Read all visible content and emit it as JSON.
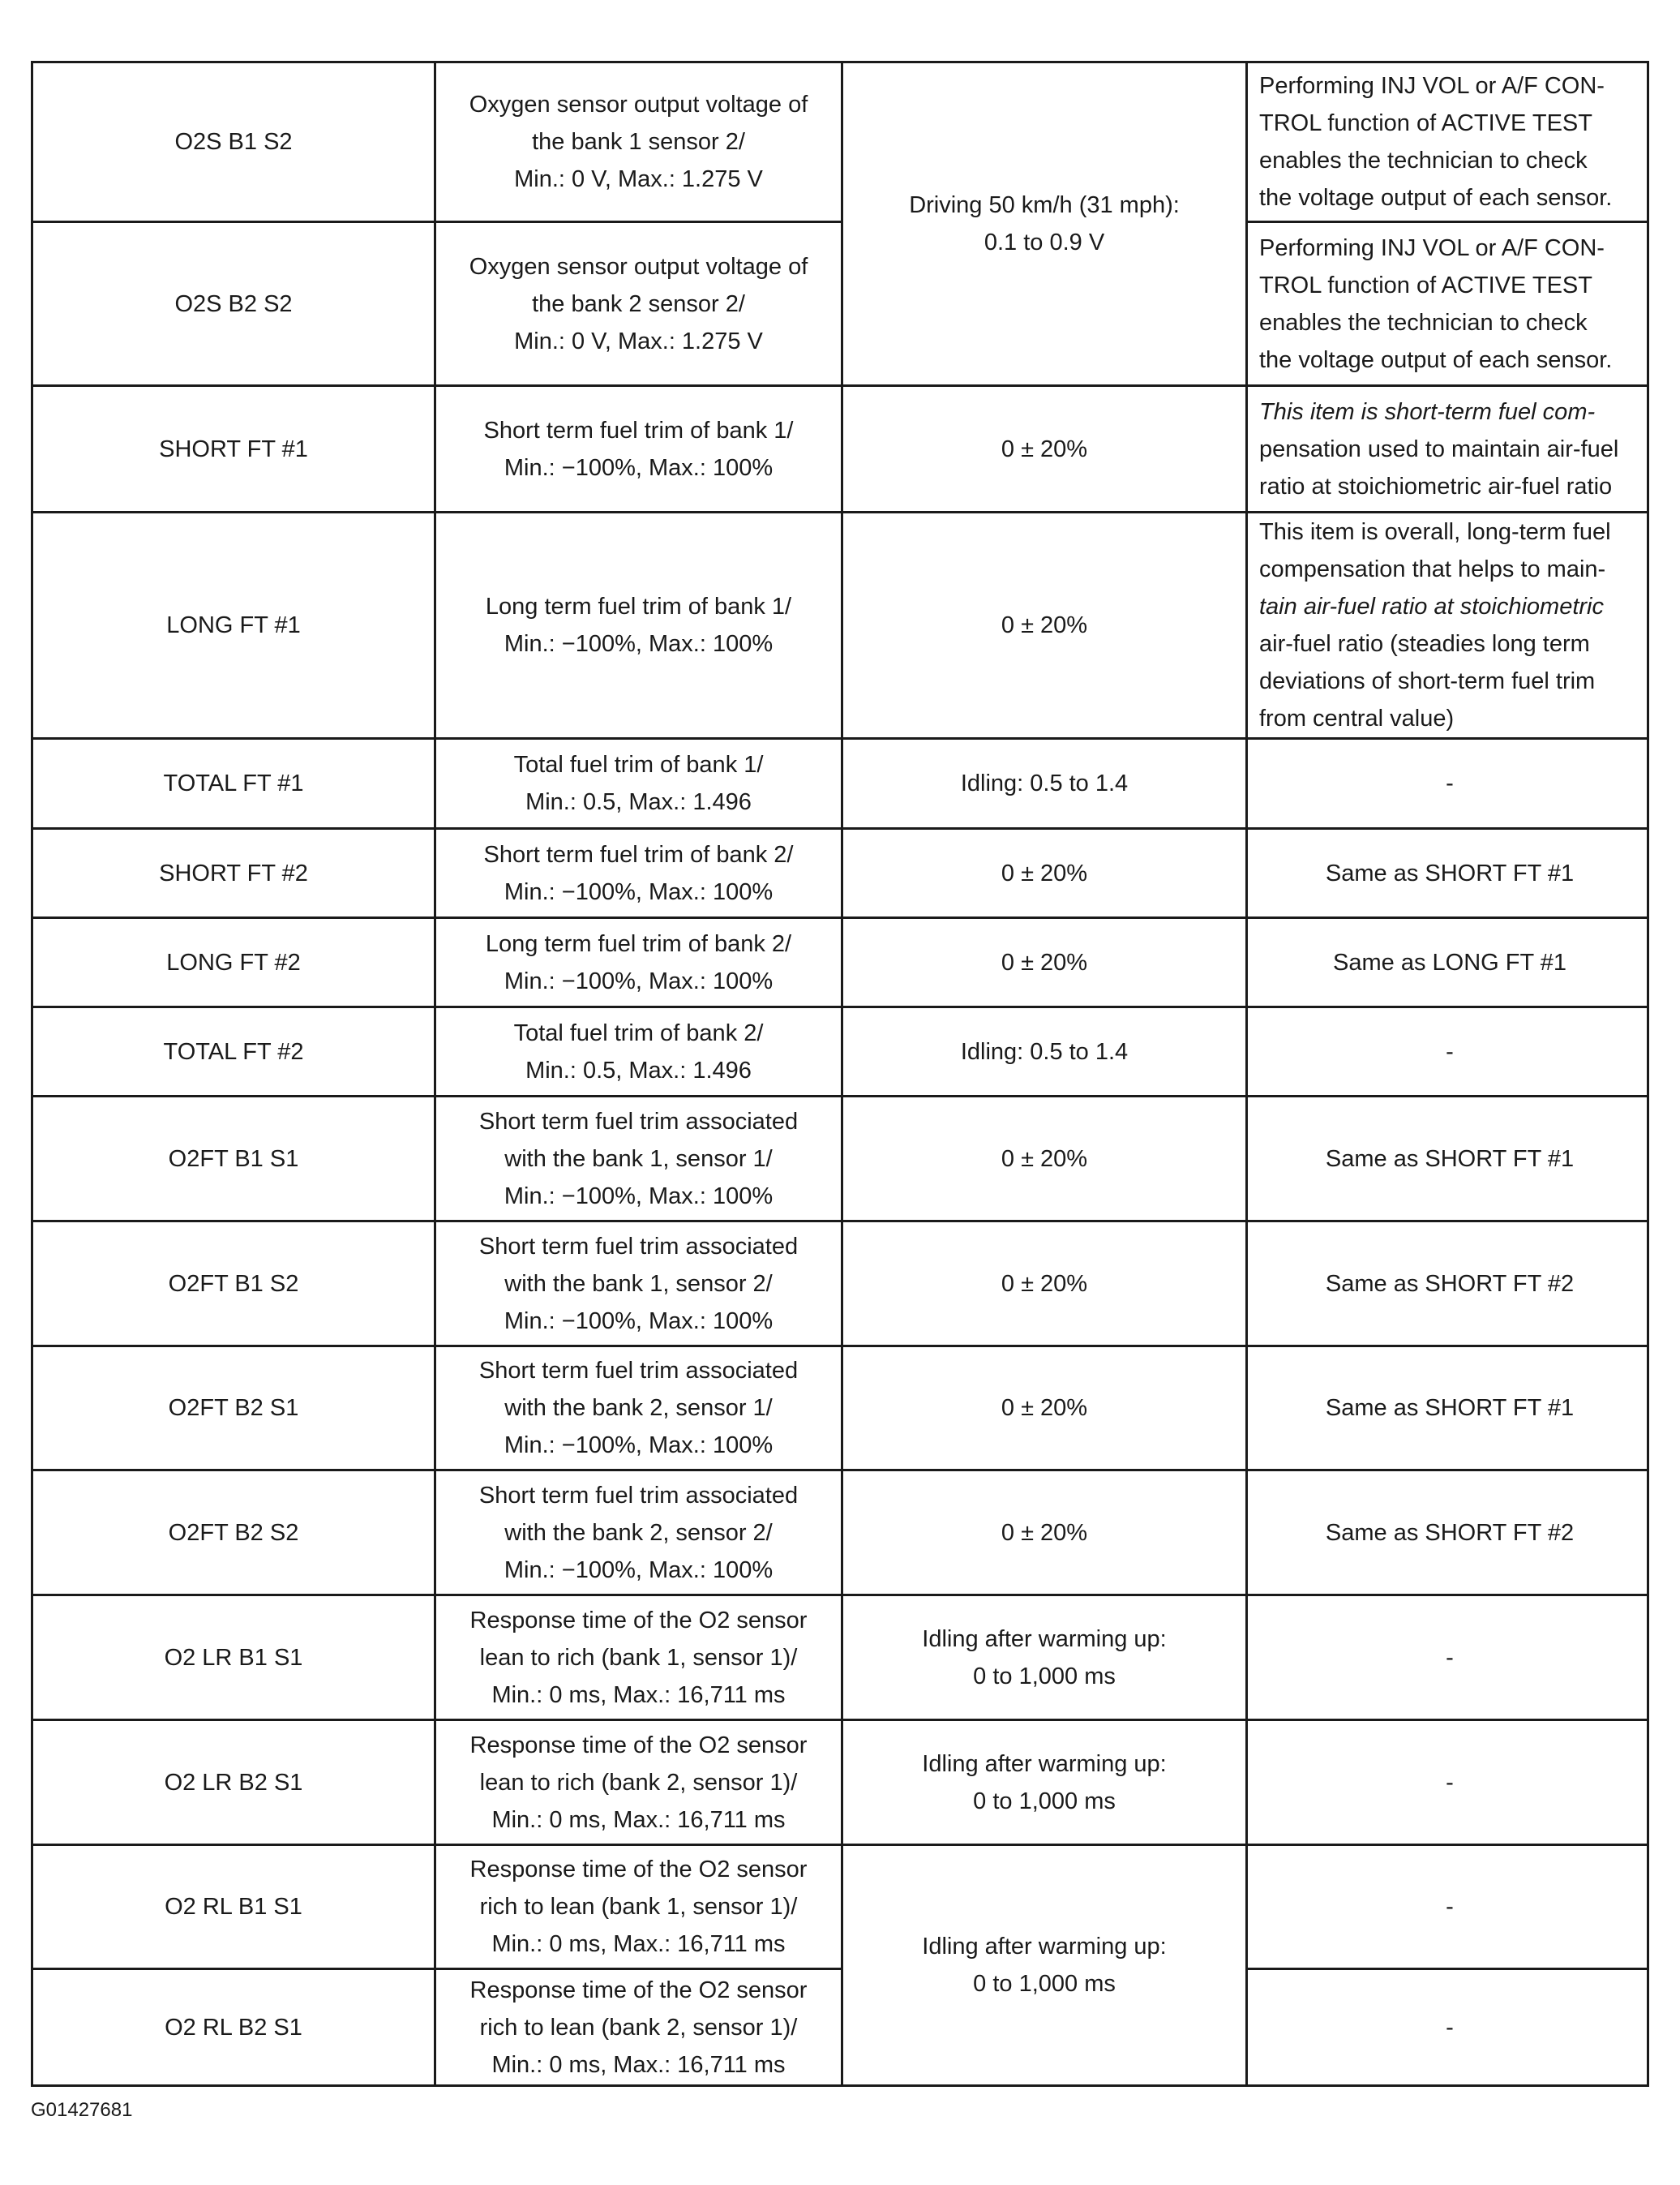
{
  "rows": [
    {
      "item": "O2S B1 S2",
      "desc": [
        "Oxygen sensor output voltage of",
        "the bank 1 sensor 2/",
        "Min.: 0 V, Max.: 1.275 V"
      ],
      "normal": [
        "Driving 50 km/h (31 mph):",
        "0.1 to 0.9 V"
      ],
      "normal_span": 2,
      "note": [
        "Performing INJ VOL or A/F CON-",
        "TROL function of ACTIVE TEST",
        "enables the technician to check",
        "the voltage output of each sensor."
      ]
    },
    {
      "item": "O2S B2 S2",
      "desc": [
        "Oxygen sensor output voltage of",
        "the bank 2 sensor 2/",
        "Min.: 0 V, Max.: 1.275 V"
      ],
      "normal": null,
      "note": [
        "Performing INJ VOL or A/F CON-",
        "TROL function of ACTIVE TEST",
        "enables the technician to check",
        "the voltage output of each sensor."
      ]
    },
    {
      "item": "SHORT FT #1",
      "desc": [
        "Short term fuel trim of bank 1/",
        "Min.: −100%, Max.: 100%"
      ],
      "normal": [
        "0 ± 20%"
      ],
      "note": [
        "This item is short-term fuel com-",
        "pensation used to maintain air-fuel",
        "ratio at stoichiometric air-fuel ratio"
      ],
      "note_italic": [
        0
      ]
    },
    {
      "item": "LONG FT #1",
      "desc": [
        "Long term fuel trim of bank 1/",
        "Min.: −100%, Max.: 100%"
      ],
      "normal": [
        "0 ± 20%"
      ],
      "note": [
        "This item is overall, long-term fuel",
        "compensation that helps to main-",
        "tain air-fuel ratio at stoichiometric",
        "air-fuel ratio (steadies long term",
        "deviations of short-term fuel trim",
        "from central value)"
      ],
      "note_italic": [
        2
      ]
    },
    {
      "item": "TOTAL FT #1",
      "desc": [
        "Total fuel trim of bank 1/",
        "Min.: 0.5, Max.: 1.496"
      ],
      "normal": [
        "Idling: 0.5 to 1.4"
      ],
      "note": [
        "-"
      ]
    },
    {
      "item": "SHORT FT #2",
      "desc": [
        "Short term fuel trim of bank 2/",
        "Min.: −100%, Max.: 100%"
      ],
      "normal": [
        "0 ± 20%"
      ],
      "note": [
        "Same as SHORT FT #1"
      ]
    },
    {
      "item": "LONG FT #2",
      "desc": [
        "Long term fuel trim of bank 2/",
        "Min.: −100%, Max.: 100%"
      ],
      "normal": [
        "0 ± 20%"
      ],
      "note": [
        "Same as LONG FT #1"
      ]
    },
    {
      "item": "TOTAL FT #2",
      "desc": [
        "Total fuel trim of bank 2/",
        "Min.: 0.5, Max.: 1.496"
      ],
      "normal": [
        "Idling: 0.5 to 1.4"
      ],
      "note": [
        "-"
      ]
    },
    {
      "item": "O2FT B1 S1",
      "desc": [
        "Short term fuel trim associated",
        "with the bank 1, sensor 1/",
        "Min.: −100%, Max.: 100%"
      ],
      "normal": [
        "0 ± 20%"
      ],
      "note": [
        "Same as SHORT FT #1"
      ]
    },
    {
      "item": "O2FT B1 S2",
      "desc": [
        "Short term fuel trim associated",
        "with the bank 1, sensor 2/",
        "Min.: −100%, Max.: 100%"
      ],
      "normal": [
        "0 ± 20%"
      ],
      "note": [
        "Same as SHORT FT #2"
      ]
    },
    {
      "item": "O2FT B2 S1",
      "desc": [
        "Short term fuel trim associated",
        "with the bank 2, sensor 1/",
        "Min.: −100%, Max.: 100%"
      ],
      "normal": [
        "0 ± 20%"
      ],
      "note": [
        "Same as SHORT FT #1"
      ]
    },
    {
      "item": "O2FT B2 S2",
      "desc": [
        "Short term fuel trim associated",
        "with the bank 2, sensor 2/",
        "Min.: −100%, Max.: 100%"
      ],
      "normal": [
        "0 ± 20%"
      ],
      "note": [
        "Same as SHORT FT #2"
      ]
    },
    {
      "item": "O2 LR B1 S1",
      "desc": [
        "Response time of the O2 sensor",
        "lean to rich (bank 1, sensor 1)/",
        "Min.: 0 ms, Max.: 16,711 ms"
      ],
      "normal": [
        "Idling after warming up:",
        "0 to 1,000 ms"
      ],
      "note": [
        "-"
      ]
    },
    {
      "item": "O2 LR B2 S1",
      "desc": [
        "Response time of the O2 sensor",
        "lean to rich (bank 2, sensor 1)/",
        "Min.: 0 ms, Max.: 16,711 ms"
      ],
      "normal": [
        "Idling after warming up:",
        "0 to 1,000 ms"
      ],
      "note": [
        "-"
      ]
    },
    {
      "item": "O2 RL B1 S1",
      "desc": [
        "Response time of the O2 sensor",
        "rich to lean (bank 1, sensor 1)/",
        "Min.: 0 ms, Max.: 16,711 ms"
      ],
      "normal": [
        "Idling after warming up:",
        "0 to 1,000 ms"
      ],
      "normal_span": 2,
      "note": [
        "-"
      ]
    },
    {
      "item": "O2 RL B2 S1",
      "desc": [
        "Response time of the O2 sensor",
        "rich to lean (bank 2, sensor 1)/",
        "Min.: 0 ms, Max.: 16,711 ms"
      ],
      "normal": null,
      "note": [
        "-"
      ]
    }
  ],
  "caption": "G01427681"
}
